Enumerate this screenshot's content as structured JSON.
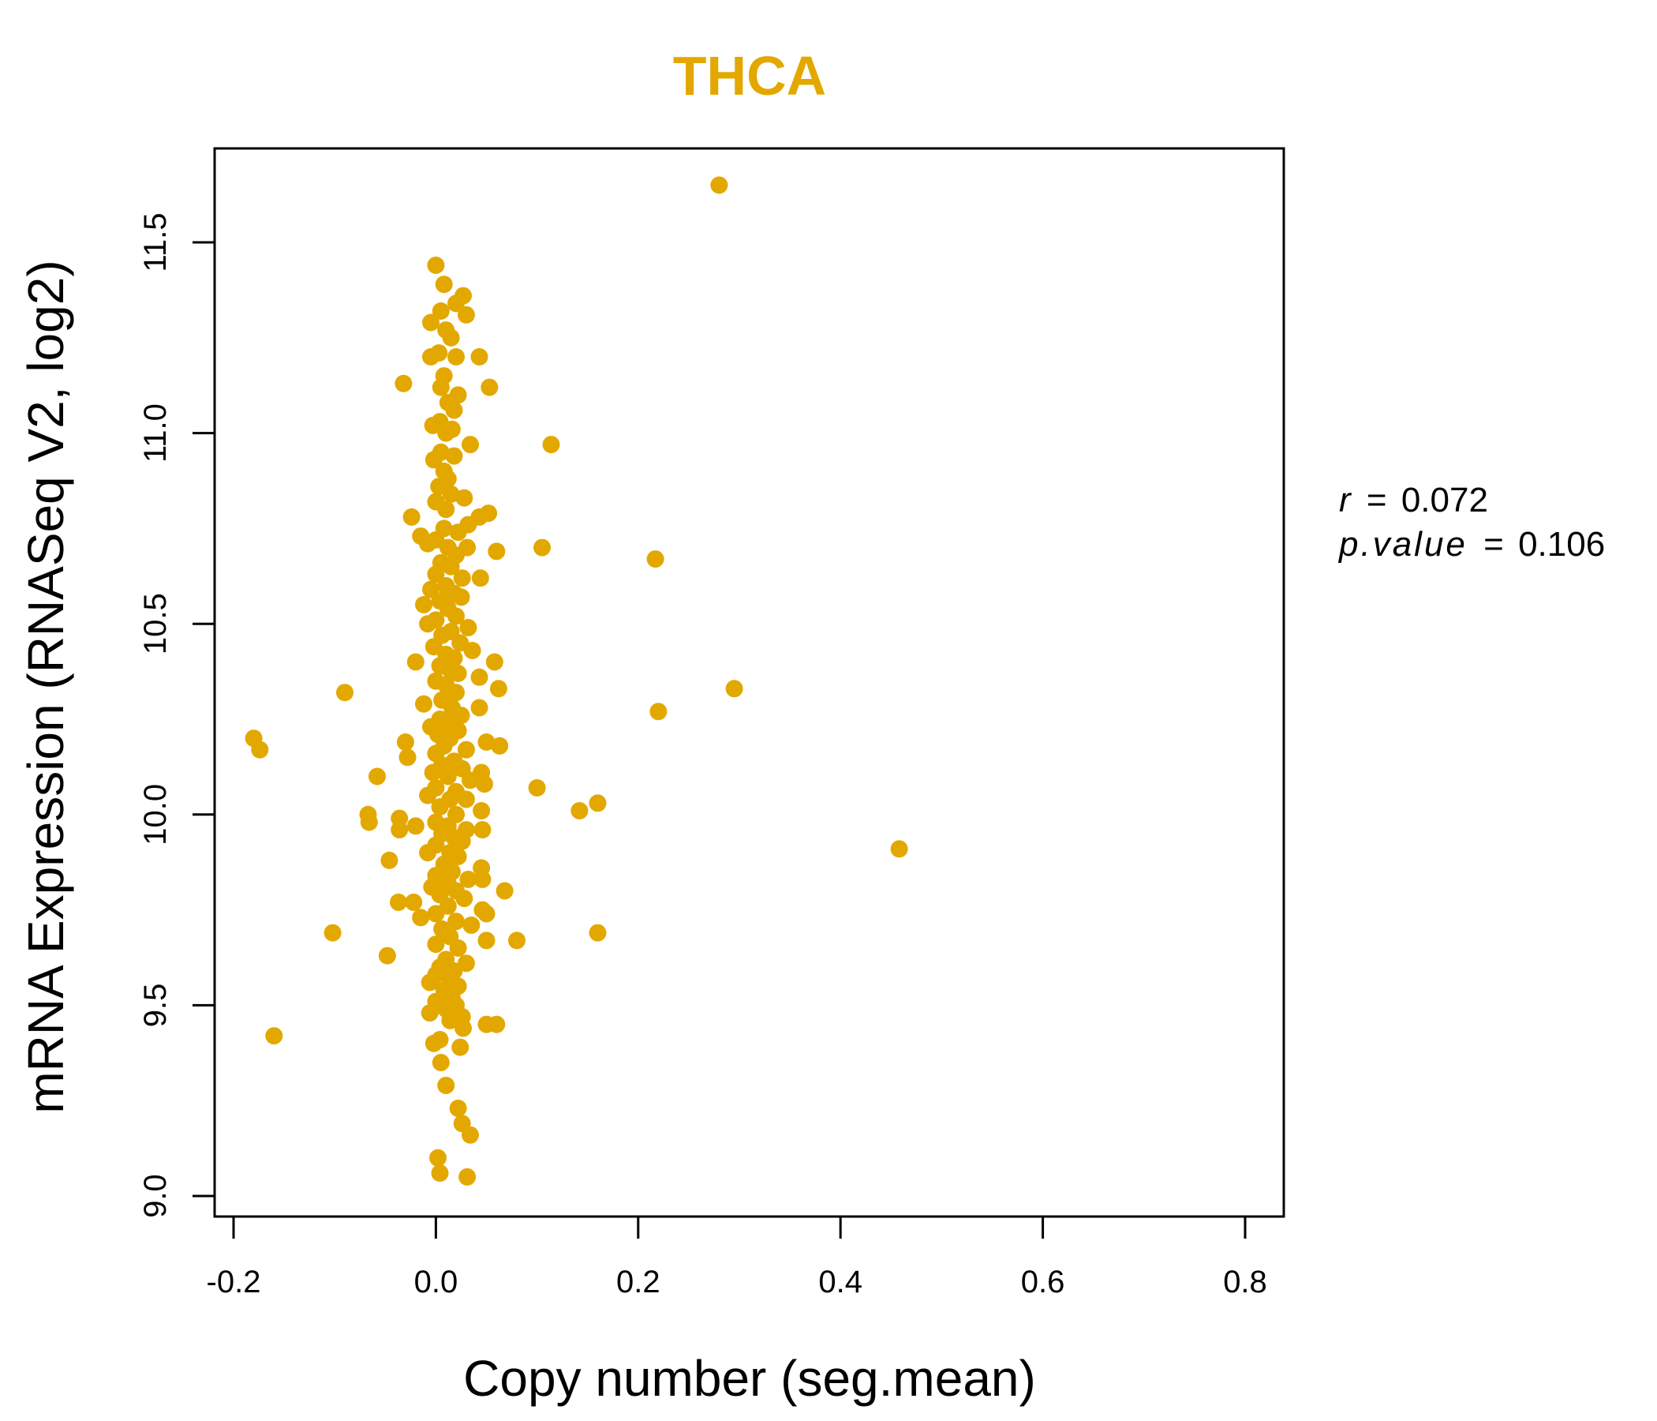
{
  "colors": {
    "point": "#E3A800",
    "title": "#E3A800",
    "axis": "#000000"
  },
  "chart_data": {
    "type": "scatter",
    "title": "THCA",
    "xlabel": "Copy number (seg.mean)",
    "ylabel": "mRNA Expression (RNASeq V2, log2)",
    "xlim": [
      -0.22,
      0.835
    ],
    "ylim": [
      8.95,
      11.75
    ],
    "x_ticks": [
      -0.2,
      0.0,
      0.2,
      0.4,
      0.6,
      0.8
    ],
    "x_tick_labels": [
      "-0.2",
      "0.0",
      "0.2",
      "0.4",
      "0.6",
      "0.8"
    ],
    "y_ticks": [
      9.0,
      9.5,
      10.0,
      10.5,
      11.0,
      11.5
    ],
    "y_tick_labels": [
      "9.0",
      "9.5",
      "10.0",
      "10.5",
      "11.0",
      "11.5"
    ],
    "stats": {
      "r_label": "r",
      "r_value": "0.072",
      "p_label": "p.value",
      "p_value": "0.106",
      "equals": "="
    },
    "points": [
      [
        0.28,
        11.65
      ],
      [
        0.0,
        11.44
      ],
      [
        0.008,
        11.39
      ],
      [
        0.027,
        11.36
      ],
      [
        0.02,
        11.34
      ],
      [
        0.005,
        11.32
      ],
      [
        0.03,
        11.31
      ],
      [
        -0.005,
        11.29
      ],
      [
        0.01,
        11.27
      ],
      [
        0.015,
        11.25
      ],
      [
        -0.005,
        11.2
      ],
      [
        0.043,
        11.2
      ],
      [
        0.02,
        11.2
      ],
      [
        0.003,
        11.21
      ],
      [
        0.008,
        11.15
      ],
      [
        -0.032,
        11.13
      ],
      [
        0.053,
        11.12
      ],
      [
        0.005,
        11.12
      ],
      [
        0.022,
        11.1
      ],
      [
        0.012,
        11.08
      ],
      [
        0.018,
        11.06
      ],
      [
        -0.003,
        11.02
      ],
      [
        0.004,
        11.03
      ],
      [
        0.01,
        11.0
      ],
      [
        0.016,
        11.01
      ],
      [
        0.034,
        10.97
      ],
      [
        0.114,
        10.97
      ],
      [
        0.005,
        10.95
      ],
      [
        0.018,
        10.94
      ],
      [
        -0.002,
        10.93
      ],
      [
        0.008,
        10.9
      ],
      [
        0.012,
        10.88
      ],
      [
        0.003,
        10.86
      ],
      [
        0.015,
        10.84
      ],
      [
        0.028,
        10.83
      ],
      [
        0.0,
        10.82
      ],
      [
        0.01,
        10.8
      ],
      [
        0.052,
        10.79
      ],
      [
        0.043,
        10.78
      ],
      [
        -0.024,
        10.78
      ],
      [
        0.032,
        10.76
      ],
      [
        0.008,
        10.75
      ],
      [
        0.022,
        10.74
      ],
      [
        -0.015,
        10.73
      ],
      [
        0.0,
        10.72
      ],
      [
        0.105,
        10.7
      ],
      [
        0.031,
        10.7
      ],
      [
        0.06,
        10.69
      ],
      [
        -0.008,
        10.71
      ],
      [
        0.012,
        10.7
      ],
      [
        0.02,
        10.68
      ],
      [
        0.005,
        10.66
      ],
      [
        0.217,
        10.67
      ],
      [
        0.015,
        10.65
      ],
      [
        0.0,
        10.63
      ],
      [
        0.026,
        10.62
      ],
      [
        0.044,
        10.62
      ],
      [
        0.01,
        10.6
      ],
      [
        -0.005,
        10.59
      ],
      [
        0.018,
        10.58
      ],
      [
        0.025,
        10.57
      ],
      [
        0.004,
        10.56
      ],
      [
        -0.012,
        10.55
      ],
      [
        0.012,
        10.54
      ],
      [
        0.02,
        10.52
      ],
      [
        0.0,
        10.51
      ],
      [
        -0.008,
        10.5
      ],
      [
        0.032,
        10.49
      ],
      [
        0.015,
        10.48
      ],
      [
        0.006,
        10.47
      ],
      [
        0.024,
        10.45
      ],
      [
        -0.002,
        10.44
      ],
      [
        0.036,
        10.43
      ],
      [
        0.01,
        10.42
      ],
      [
        0.018,
        10.41
      ],
      [
        -0.02,
        10.4
      ],
      [
        0.058,
        10.4
      ],
      [
        0.004,
        10.39
      ],
      [
        0.014,
        10.38
      ],
      [
        0.022,
        10.37
      ],
      [
        0.043,
        10.36
      ],
      [
        0.0,
        10.35
      ],
      [
        0.01,
        10.34
      ],
      [
        0.295,
        10.33
      ],
      [
        -0.09,
        10.32
      ],
      [
        0.062,
        10.33
      ],
      [
        0.02,
        10.32
      ],
      [
        0.006,
        10.3
      ],
      [
        -0.012,
        10.29
      ],
      [
        0.016,
        10.28
      ],
      [
        0.043,
        10.28
      ],
      [
        0.22,
        10.27
      ],
      [
        0.025,
        10.26
      ],
      [
        0.004,
        10.25
      ],
      [
        0.012,
        10.24
      ],
      [
        -0.005,
        10.23
      ],
      [
        0.022,
        10.22
      ],
      [
        0.002,
        10.21
      ],
      [
        0.014,
        10.2
      ],
      [
        -0.18,
        10.2
      ],
      [
        0.05,
        10.19
      ],
      [
        -0.03,
        10.19
      ],
      [
        0.008,
        10.18
      ],
      [
        0.063,
        10.18
      ],
      [
        0.03,
        10.17
      ],
      [
        -0.174,
        10.17
      ],
      [
        0.0,
        10.16
      ],
      [
        -0.028,
        10.15
      ],
      [
        0.018,
        10.14
      ],
      [
        0.006,
        10.13
      ],
      [
        0.026,
        10.12
      ],
      [
        -0.003,
        10.11
      ],
      [
        0.045,
        10.11
      ],
      [
        -0.058,
        10.1
      ],
      [
        0.012,
        10.1
      ],
      [
        0.034,
        10.09
      ],
      [
        0.048,
        10.08
      ],
      [
        0.0,
        10.07
      ],
      [
        0.1,
        10.07
      ],
      [
        0.02,
        10.06
      ],
      [
        -0.008,
        10.05
      ],
      [
        0.03,
        10.04
      ],
      [
        0.014,
        10.04
      ],
      [
        0.16,
        10.03
      ],
      [
        0.004,
        10.02
      ],
      [
        0.045,
        10.01
      ],
      [
        0.142,
        10.01
      ],
      [
        0.02,
        10.0
      ],
      [
        -0.067,
        10.0
      ],
      [
        -0.036,
        9.99
      ],
      [
        -0.066,
        9.98
      ],
      [
        0.0,
        9.98
      ],
      [
        0.012,
        9.97
      ],
      [
        -0.02,
        9.97
      ],
      [
        0.03,
        9.96
      ],
      [
        0.046,
        9.96
      ],
      [
        -0.036,
        9.96
      ],
      [
        0.006,
        9.95
      ],
      [
        0.018,
        9.94
      ],
      [
        0.026,
        9.93
      ],
      [
        0.0,
        9.92
      ],
      [
        0.458,
        9.91
      ],
      [
        0.014,
        9.9
      ],
      [
        -0.008,
        9.9
      ],
      [
        0.022,
        9.89
      ],
      [
        -0.046,
        9.88
      ],
      [
        0.008,
        9.87
      ],
      [
        0.045,
        9.86
      ],
      [
        0.016,
        9.85
      ],
      [
        0.0,
        9.84
      ],
      [
        0.032,
        9.83
      ],
      [
        0.046,
        9.83
      ],
      [
        0.012,
        9.82
      ],
      [
        -0.004,
        9.81
      ],
      [
        0.068,
        9.8
      ],
      [
        0.02,
        9.8
      ],
      [
        0.004,
        9.79
      ],
      [
        0.028,
        9.78
      ],
      [
        -0.037,
        9.77
      ],
      [
        -0.022,
        9.77
      ],
      [
        0.012,
        9.76
      ],
      [
        0.046,
        9.75
      ],
      [
        0.0,
        9.74
      ],
      [
        0.05,
        9.74
      ],
      [
        -0.015,
        9.73
      ],
      [
        0.02,
        9.72
      ],
      [
        0.035,
        9.71
      ],
      [
        0.006,
        9.7
      ],
      [
        0.16,
        9.69
      ],
      [
        -0.102,
        9.69
      ],
      [
        0.014,
        9.68
      ],
      [
        0.05,
        9.67
      ],
      [
        0.08,
        9.67
      ],
      [
        0.0,
        9.66
      ],
      [
        0.022,
        9.65
      ],
      [
        -0.048,
        9.63
      ],
      [
        0.01,
        9.62
      ],
      [
        0.03,
        9.61
      ],
      [
        0.004,
        9.6
      ],
      [
        0.018,
        9.59
      ],
      [
        0.0,
        9.58
      ],
      [
        0.014,
        9.57
      ],
      [
        -0.006,
        9.56
      ],
      [
        0.022,
        9.55
      ],
      [
        0.008,
        9.54
      ],
      [
        0.016,
        9.52
      ],
      [
        0.0,
        9.51
      ],
      [
        0.02,
        9.5
      ],
      [
        0.01,
        9.49
      ],
      [
        -0.006,
        9.48
      ],
      [
        0.026,
        9.47
      ],
      [
        0.05,
        9.45
      ],
      [
        0.06,
        9.45
      ],
      [
        0.014,
        9.46
      ],
      [
        0.027,
        9.44
      ],
      [
        -0.16,
        9.42
      ],
      [
        0.004,
        9.41
      ],
      [
        -0.002,
        9.4
      ],
      [
        0.024,
        9.39
      ],
      [
        0.005,
        9.35
      ],
      [
        0.01,
        9.29
      ],
      [
        0.022,
        9.23
      ],
      [
        0.026,
        9.19
      ],
      [
        0.034,
        9.16
      ],
      [
        0.002,
        9.1
      ],
      [
        0.004,
        9.06
      ],
      [
        0.031,
        9.05
      ]
    ]
  }
}
